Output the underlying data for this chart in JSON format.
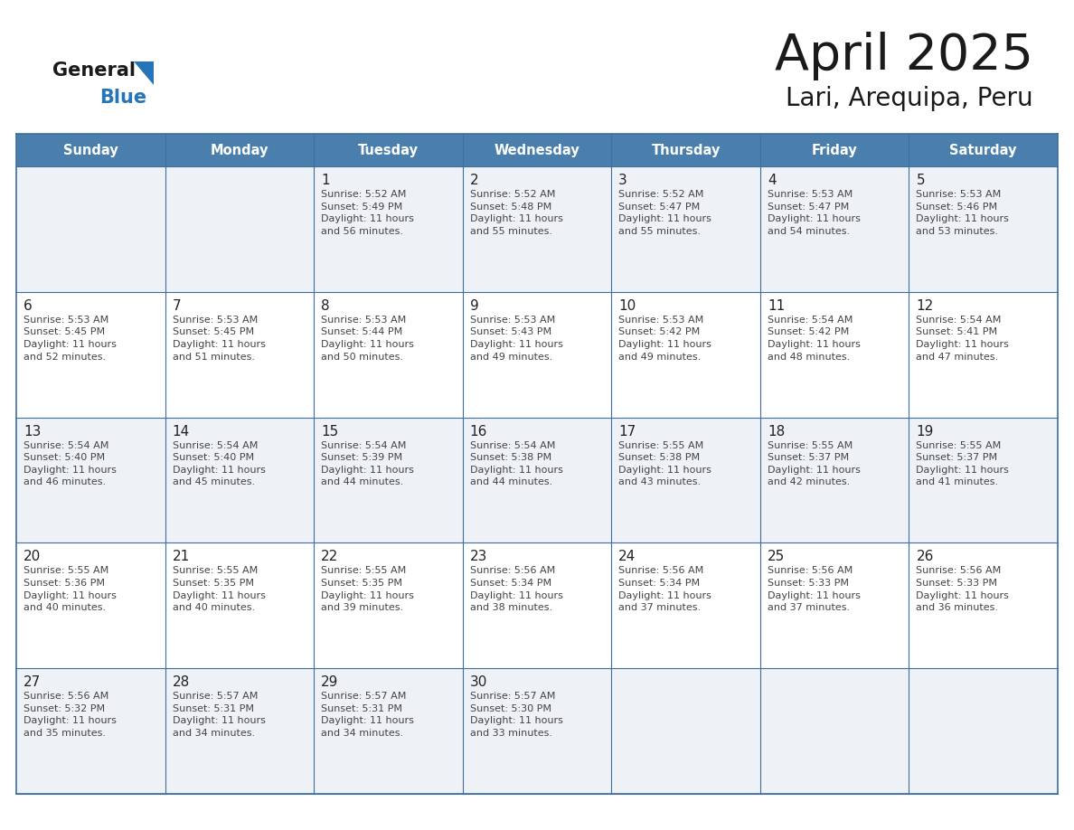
{
  "title": "April 2025",
  "subtitle": "Lari, Arequipa, Peru",
  "days_of_week": [
    "Sunday",
    "Monday",
    "Tuesday",
    "Wednesday",
    "Thursday",
    "Friday",
    "Saturday"
  ],
  "header_bg": "#4a7fad",
  "header_text": "#ffffff",
  "row_bg_light": "#eef2f7",
  "row_bg_white": "#ffffff",
  "cell_border_color": "#3d6e9e",
  "day_num_color": "#222222",
  "info_text_color": "#444444",
  "logo_general_color": "#1a1a1a",
  "logo_blue_color": "#2575b8",
  "title_color": "#1a1a1a",
  "subtitle_color": "#1a1a1a",
  "calendar_data": [
    [
      {
        "day": "",
        "info": ""
      },
      {
        "day": "",
        "info": ""
      },
      {
        "day": "1",
        "info": "Sunrise: 5:52 AM\nSunset: 5:49 PM\nDaylight: 11 hours\nand 56 minutes."
      },
      {
        "day": "2",
        "info": "Sunrise: 5:52 AM\nSunset: 5:48 PM\nDaylight: 11 hours\nand 55 minutes."
      },
      {
        "day": "3",
        "info": "Sunrise: 5:52 AM\nSunset: 5:47 PM\nDaylight: 11 hours\nand 55 minutes."
      },
      {
        "day": "4",
        "info": "Sunrise: 5:53 AM\nSunset: 5:47 PM\nDaylight: 11 hours\nand 54 minutes."
      },
      {
        "day": "5",
        "info": "Sunrise: 5:53 AM\nSunset: 5:46 PM\nDaylight: 11 hours\nand 53 minutes."
      }
    ],
    [
      {
        "day": "6",
        "info": "Sunrise: 5:53 AM\nSunset: 5:45 PM\nDaylight: 11 hours\nand 52 minutes."
      },
      {
        "day": "7",
        "info": "Sunrise: 5:53 AM\nSunset: 5:45 PM\nDaylight: 11 hours\nand 51 minutes."
      },
      {
        "day": "8",
        "info": "Sunrise: 5:53 AM\nSunset: 5:44 PM\nDaylight: 11 hours\nand 50 minutes."
      },
      {
        "day": "9",
        "info": "Sunrise: 5:53 AM\nSunset: 5:43 PM\nDaylight: 11 hours\nand 49 minutes."
      },
      {
        "day": "10",
        "info": "Sunrise: 5:53 AM\nSunset: 5:42 PM\nDaylight: 11 hours\nand 49 minutes."
      },
      {
        "day": "11",
        "info": "Sunrise: 5:54 AM\nSunset: 5:42 PM\nDaylight: 11 hours\nand 48 minutes."
      },
      {
        "day": "12",
        "info": "Sunrise: 5:54 AM\nSunset: 5:41 PM\nDaylight: 11 hours\nand 47 minutes."
      }
    ],
    [
      {
        "day": "13",
        "info": "Sunrise: 5:54 AM\nSunset: 5:40 PM\nDaylight: 11 hours\nand 46 minutes."
      },
      {
        "day": "14",
        "info": "Sunrise: 5:54 AM\nSunset: 5:40 PM\nDaylight: 11 hours\nand 45 minutes."
      },
      {
        "day": "15",
        "info": "Sunrise: 5:54 AM\nSunset: 5:39 PM\nDaylight: 11 hours\nand 44 minutes."
      },
      {
        "day": "16",
        "info": "Sunrise: 5:54 AM\nSunset: 5:38 PM\nDaylight: 11 hours\nand 44 minutes."
      },
      {
        "day": "17",
        "info": "Sunrise: 5:55 AM\nSunset: 5:38 PM\nDaylight: 11 hours\nand 43 minutes."
      },
      {
        "day": "18",
        "info": "Sunrise: 5:55 AM\nSunset: 5:37 PM\nDaylight: 11 hours\nand 42 minutes."
      },
      {
        "day": "19",
        "info": "Sunrise: 5:55 AM\nSunset: 5:37 PM\nDaylight: 11 hours\nand 41 minutes."
      }
    ],
    [
      {
        "day": "20",
        "info": "Sunrise: 5:55 AM\nSunset: 5:36 PM\nDaylight: 11 hours\nand 40 minutes."
      },
      {
        "day": "21",
        "info": "Sunrise: 5:55 AM\nSunset: 5:35 PM\nDaylight: 11 hours\nand 40 minutes."
      },
      {
        "day": "22",
        "info": "Sunrise: 5:55 AM\nSunset: 5:35 PM\nDaylight: 11 hours\nand 39 minutes."
      },
      {
        "day": "23",
        "info": "Sunrise: 5:56 AM\nSunset: 5:34 PM\nDaylight: 11 hours\nand 38 minutes."
      },
      {
        "day": "24",
        "info": "Sunrise: 5:56 AM\nSunset: 5:34 PM\nDaylight: 11 hours\nand 37 minutes."
      },
      {
        "day": "25",
        "info": "Sunrise: 5:56 AM\nSunset: 5:33 PM\nDaylight: 11 hours\nand 37 minutes."
      },
      {
        "day": "26",
        "info": "Sunrise: 5:56 AM\nSunset: 5:33 PM\nDaylight: 11 hours\nand 36 minutes."
      }
    ],
    [
      {
        "day": "27",
        "info": "Sunrise: 5:56 AM\nSunset: 5:32 PM\nDaylight: 11 hours\nand 35 minutes."
      },
      {
        "day": "28",
        "info": "Sunrise: 5:57 AM\nSunset: 5:31 PM\nDaylight: 11 hours\nand 34 minutes."
      },
      {
        "day": "29",
        "info": "Sunrise: 5:57 AM\nSunset: 5:31 PM\nDaylight: 11 hours\nand 34 minutes."
      },
      {
        "day": "30",
        "info": "Sunrise: 5:57 AM\nSunset: 5:30 PM\nDaylight: 11 hours\nand 33 minutes."
      },
      {
        "day": "",
        "info": ""
      },
      {
        "day": "",
        "info": ""
      },
      {
        "day": "",
        "info": ""
      }
    ]
  ]
}
